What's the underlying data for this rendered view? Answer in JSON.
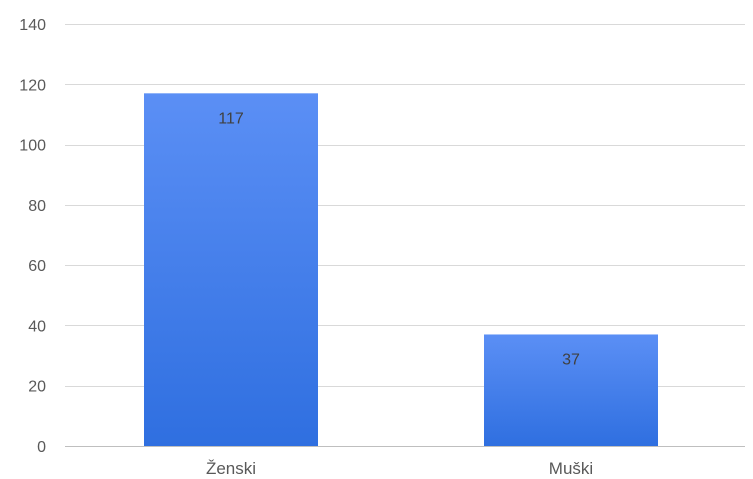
{
  "chart_data": {
    "type": "bar",
    "categories": [
      "Ženski",
      "Muški"
    ],
    "values": [
      117,
      37
    ],
    "data_labels": [
      "117",
      "37"
    ],
    "title": "",
    "xlabel": "",
    "ylabel": "",
    "ylim": [
      0,
      140
    ],
    "yticks": [
      0,
      20,
      40,
      60,
      80,
      100,
      120,
      140
    ],
    "grid": true,
    "legend": "none",
    "colors": {
      "bar_top": "#5b8ff5",
      "bar_bottom": "#2f6fe0",
      "grid": "#d9d9d9",
      "text": "#595959"
    }
  }
}
